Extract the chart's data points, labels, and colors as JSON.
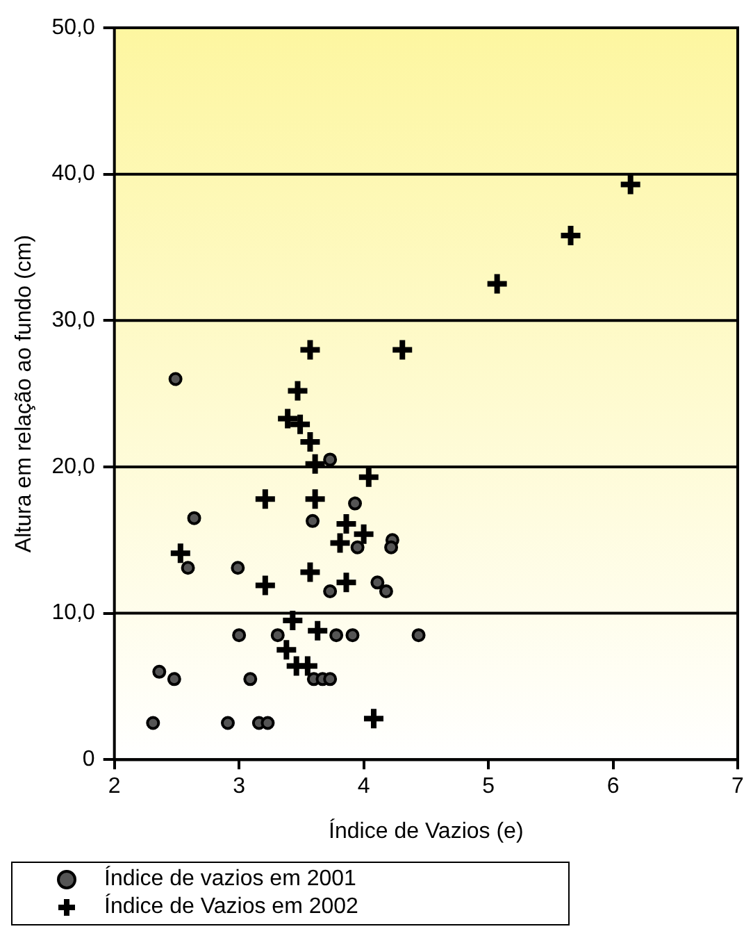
{
  "chart_data": {
    "type": "scatter",
    "xlabel": "Índice de Vazios (e)",
    "ylabel": "Altura em relação ao fundo (cm)",
    "xlim": [
      2,
      7
    ],
    "xticks": [
      2,
      3,
      4,
      5,
      6,
      7
    ],
    "ylim": [
      0,
      50
    ],
    "yticks": [
      0,
      {
        "value": 10,
        "label": "10,0"
      },
      {
        "value": 20,
        "label": "20,0"
      },
      {
        "value": 30,
        "label": "30,0"
      },
      {
        "value": 40,
        "label": "40,0"
      },
      {
        "value": 50,
        "label": "50,0"
      }
    ],
    "grid": "y",
    "legend": "bottom left",
    "series": [
      {
        "name": "Índice de vazios em 2001",
        "color": "#000000",
        "marker": "circle",
        "x": [
          2.49,
          2.64,
          2.59,
          2.36,
          2.48,
          2.31,
          2.91,
          3.16,
          3.23,
          2.99,
          3.0,
          3.09,
          3.31,
          3.73,
          3.59,
          3.93,
          3.95,
          4.23,
          4.22,
          3.73,
          4.11,
          4.18,
          3.78,
          3.91,
          4.44,
          3.6,
          3.67,
          3.73
        ],
        "values": [
          26.0,
          16.5,
          13.1,
          6.0,
          5.5,
          2.5,
          2.5,
          2.5,
          2.5,
          13.1,
          8.5,
          5.5,
          8.5,
          20.5,
          16.3,
          17.5,
          14.5,
          15.0,
          14.5,
          11.5,
          12.1,
          11.5,
          8.5,
          8.5,
          8.5,
          5.5,
          5.5,
          5.5
        ]
      },
      {
        "name": "Índice de Vazios em 2002",
        "color": "#000000",
        "marker": "cross",
        "x": [
          6.14,
          5.66,
          5.07,
          3.57,
          4.31,
          3.47,
          3.39,
          3.49,
          3.57,
          3.61,
          4.04,
          3.21,
          3.61,
          3.86,
          4.0,
          3.81,
          2.53,
          3.57,
          3.86,
          3.21,
          3.43,
          3.63,
          3.38,
          3.46,
          3.55,
          4.08
        ],
        "values": [
          39.3,
          35.8,
          32.5,
          28.0,
          28.0,
          25.2,
          23.3,
          22.9,
          21.7,
          20.2,
          19.3,
          17.8,
          17.8,
          16.1,
          15.4,
          14.8,
          14.1,
          12.8,
          12.1,
          11.9,
          9.5,
          8.8,
          7.5,
          6.4,
          6.4,
          2.8
        ]
      }
    ]
  }
}
